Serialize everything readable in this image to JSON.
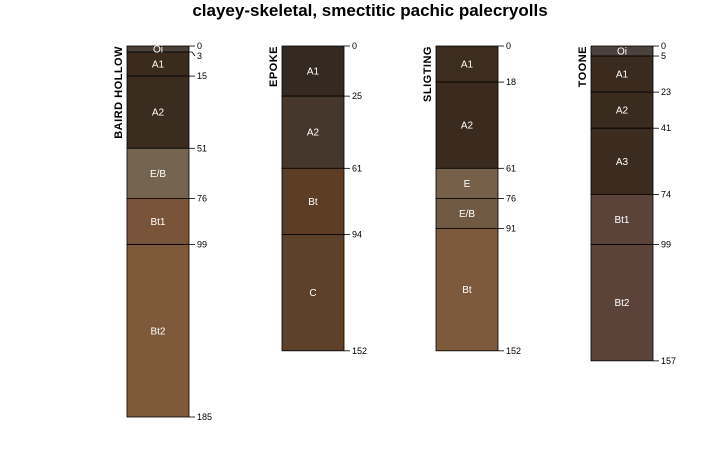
{
  "chart_data": {
    "type": "soil-profile-sketch",
    "title": "clayey-skeletal, smectitic pachic palecryolls",
    "depth_units": "cm",
    "profiles": [
      {
        "name": "BAIRD HOLLOW",
        "horizons": [
          {
            "name": "Oi",
            "top": 0,
            "bottom": 3,
            "color": "#4a4038"
          },
          {
            "name": "A1",
            "top": 3,
            "bottom": 15,
            "color": "#3b2b1d"
          },
          {
            "name": "A2",
            "top": 15,
            "bottom": 51,
            "color": "#3a2c1f"
          },
          {
            "name": "E/B",
            "top": 51,
            "bottom": 76,
            "color": "#75644f"
          },
          {
            "name": "Bt1",
            "top": 76,
            "bottom": 99,
            "color": "#7a5438"
          },
          {
            "name": "Bt2",
            "top": 99,
            "bottom": 185,
            "color": "#7e5a3a"
          }
        ],
        "depth_labels": [
          "0",
          "3",
          "15",
          "51",
          "76",
          "99",
          "185"
        ]
      },
      {
        "name": "EPOKE",
        "horizons": [
          {
            "name": "A1",
            "top": 0,
            "bottom": 25,
            "color": "#352a22"
          },
          {
            "name": "A2",
            "top": 25,
            "bottom": 61,
            "color": "#45372b"
          },
          {
            "name": "Bt",
            "top": 61,
            "bottom": 94,
            "color": "#5e3d25"
          },
          {
            "name": "C",
            "top": 94,
            "bottom": 152,
            "color": "#5e4129"
          }
        ],
        "depth_labels": [
          "0",
          "25",
          "61",
          "94",
          "152"
        ]
      },
      {
        "name": "SLIGTING",
        "horizons": [
          {
            "name": "A1",
            "top": 0,
            "bottom": 18,
            "color": "#3d2d1f"
          },
          {
            "name": "A2",
            "top": 18,
            "bottom": 61,
            "color": "#3b2b1e"
          },
          {
            "name": "E",
            "top": 61,
            "bottom": 76,
            "color": "#77604a"
          },
          {
            "name": "E/B",
            "top": 76,
            "bottom": 91,
            "color": "#715a44"
          },
          {
            "name": "Bt",
            "top": 91,
            "bottom": 152,
            "color": "#7e5a3c"
          }
        ],
        "depth_labels": [
          "0",
          "18",
          "61",
          "76",
          "91",
          "152"
        ]
      },
      {
        "name": "TOONE",
        "horizons": [
          {
            "name": "Oi",
            "top": 0,
            "bottom": 5,
            "color": "#4b423d"
          },
          {
            "name": "A1",
            "top": 5,
            "bottom": 23,
            "color": "#3a2b1e"
          },
          {
            "name": "A2",
            "top": 23,
            "bottom": 41,
            "color": "#3a2b1f"
          },
          {
            "name": "A3",
            "top": 41,
            "bottom": 74,
            "color": "#3b2c1f"
          },
          {
            "name": "Bt1",
            "top": 74,
            "bottom": 99,
            "color": "#5b433a"
          },
          {
            "name": "Bt2",
            "top": 99,
            "bottom": 157,
            "color": "#5b4339"
          }
        ],
        "depth_labels": [
          "0",
          "5",
          "23",
          "41",
          "74",
          "99",
          "157"
        ]
      }
    ]
  }
}
